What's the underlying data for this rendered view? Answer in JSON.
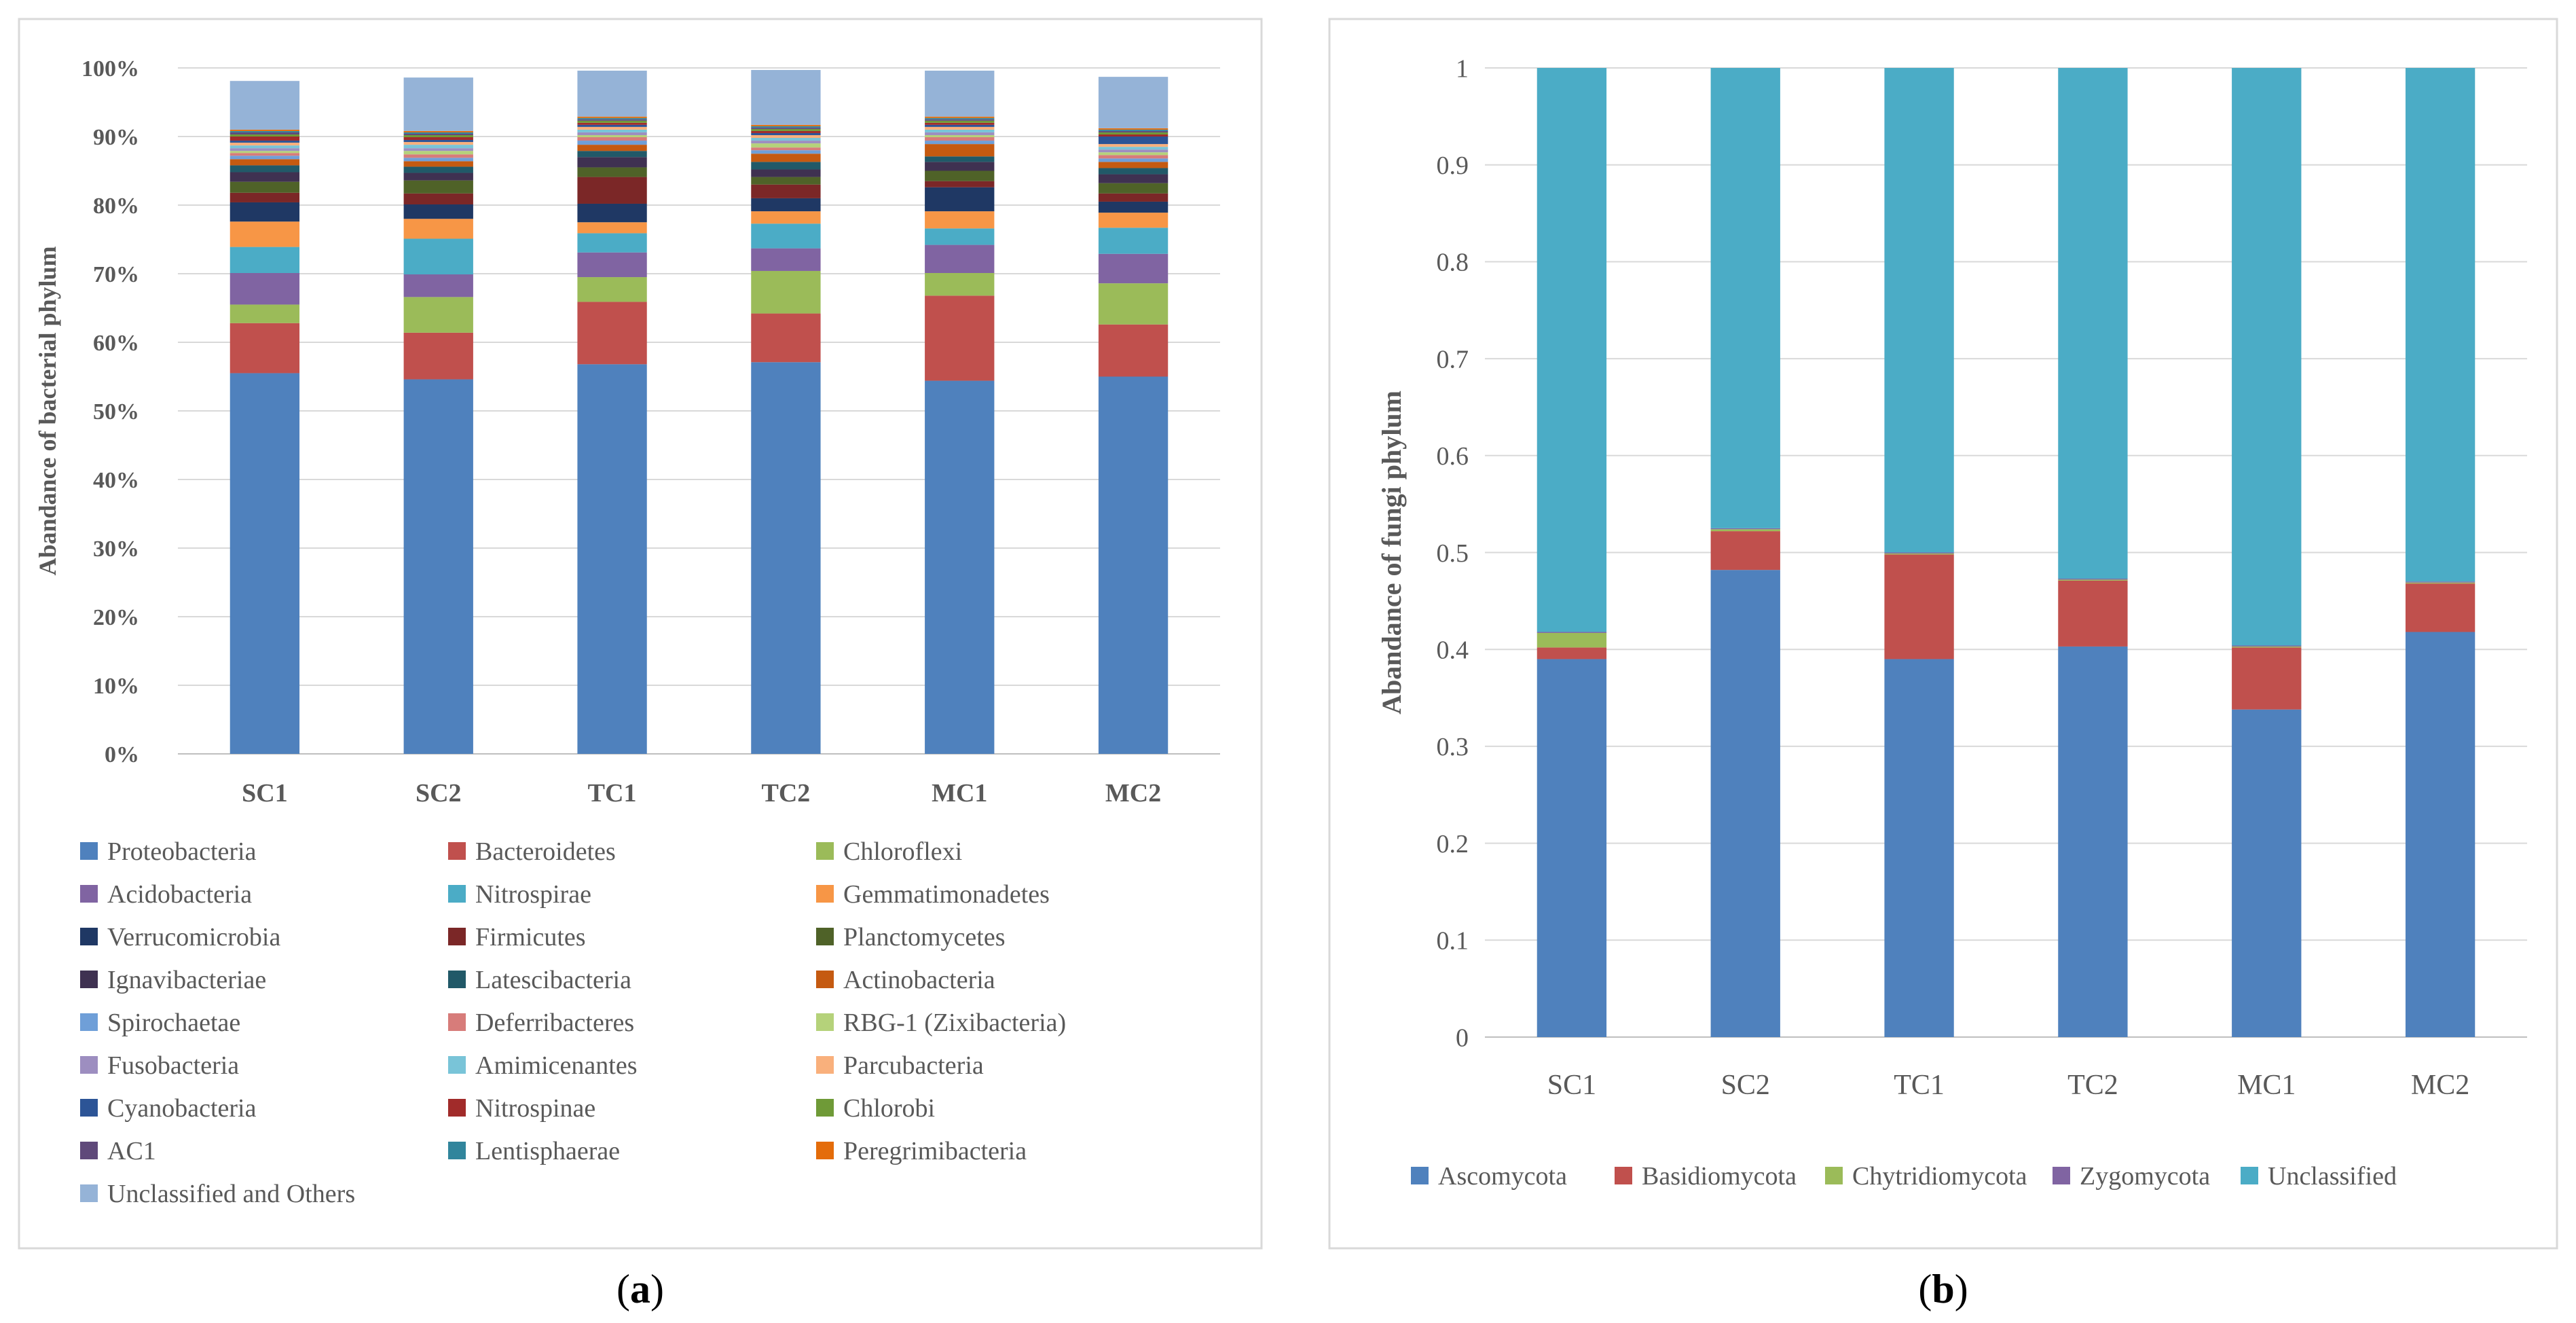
{
  "panels": {
    "a": {
      "label_open": "(",
      "label_letter": "a",
      "label_close": ")"
    },
    "b": {
      "label_open": "(",
      "label_letter": "b",
      "label_close": ")"
    }
  },
  "chart_data": [
    {
      "type": "bar",
      "stacked": true,
      "percent": true,
      "categories": [
        "SC1",
        "SC2",
        "TC1",
        "TC2",
        "MC1",
        "MC2"
      ],
      "ylabel": "Abandance of bacterial phylum",
      "ylim": [
        0,
        100
      ],
      "yticks": [
        "0%",
        "10%",
        "20%",
        "30%",
        "40%",
        "50%",
        "60%",
        "70%",
        "80%",
        "90%",
        "100%"
      ],
      "legend_position": "bottom",
      "series": [
        {
          "name": "Proteobacteria",
          "color": "#4f81bd",
          "values": [
            55.5,
            54.6,
            56.8,
            57.1,
            54.4,
            55.0
          ]
        },
        {
          "name": "Bacteroidetes",
          "color": "#c0504d",
          "values": [
            7.3,
            6.8,
            9.1,
            7.1,
            12.4,
            7.6
          ]
        },
        {
          "name": "Chloroflexi",
          "color": "#9bbb59",
          "values": [
            2.7,
            5.2,
            3.6,
            6.2,
            3.3,
            6.0
          ]
        },
        {
          "name": "Acidobacteria",
          "color": "#8064a2",
          "values": [
            4.6,
            3.3,
            3.6,
            3.3,
            4.1,
            4.3
          ]
        },
        {
          "name": "Nitrospirae",
          "color": "#4bacc6",
          "values": [
            3.8,
            5.2,
            2.8,
            3.6,
            2.4,
            3.8
          ]
        },
        {
          "name": "Gemmatimonadetes",
          "color": "#f79646",
          "values": [
            3.7,
            2.9,
            1.6,
            1.8,
            2.5,
            2.2
          ]
        },
        {
          "name": "Verrucomicrobia",
          "color": "#1f3864",
          "values": [
            2.8,
            2.1,
            2.7,
            1.9,
            3.5,
            1.6
          ]
        },
        {
          "name": "Firmicutes",
          "color": "#7b2727",
          "values": [
            1.4,
            1.6,
            3.9,
            2.0,
            0.9,
            1.2
          ]
        },
        {
          "name": "Planctomycetes",
          "color": "#4f6228",
          "values": [
            1.6,
            1.9,
            1.4,
            1.1,
            1.5,
            1.5
          ]
        },
        {
          "name": "Ignavibacteriae",
          "color": "#3f3151",
          "values": [
            1.4,
            1.1,
            1.5,
            1.1,
            1.3,
            1.3
          ]
        },
        {
          "name": "Latescibacteria",
          "color": "#215968",
          "values": [
            1.0,
            0.9,
            0.9,
            1.1,
            0.8,
            0.9
          ]
        },
        {
          "name": "Actinobacteria",
          "color": "#c55a11",
          "values": [
            0.9,
            0.8,
            0.9,
            1.2,
            1.8,
            0.9
          ]
        },
        {
          "name": "Spirochaetae",
          "color": "#6f9fd8",
          "values": [
            0.5,
            0.5,
            0.6,
            0.5,
            0.5,
            0.5
          ]
        },
        {
          "name": "Deferribacteres",
          "color": "#d77c7a",
          "values": [
            0.4,
            0.5,
            0.5,
            0.4,
            0.5,
            0.5
          ]
        },
        {
          "name": "RBG-1 (Zixibacteria)",
          "color": "#b5d27a",
          "values": [
            0.3,
            0.5,
            0.3,
            0.6,
            0.3,
            0.4
          ]
        },
        {
          "name": "Fusobacteria",
          "color": "#9d8ec0",
          "values": [
            0.4,
            0.4,
            0.4,
            0.4,
            0.4,
            0.4
          ]
        },
        {
          "name": "Amimicenantes",
          "color": "#79c4d8",
          "values": [
            0.4,
            0.5,
            0.4,
            0.4,
            0.4,
            0.4
          ]
        },
        {
          "name": "Parcubacteria",
          "color": "#f9b07c",
          "values": [
            0.4,
            0.4,
            0.4,
            0.4,
            0.4,
            0.4
          ]
        },
        {
          "name": "Cyanobacteria",
          "color": "#2c5496",
          "values": [
            0.3,
            0.3,
            0.3,
            0.3,
            0.3,
            1.1
          ]
        },
        {
          "name": "Nitrospinae",
          "color": "#a12b2a",
          "values": [
            0.6,
            0.4,
            0.3,
            0.3,
            0.3,
            0.3
          ]
        },
        {
          "name": "Chlorobi",
          "color": "#6f9a37",
          "values": [
            0.3,
            0.3,
            0.3,
            0.3,
            0.3,
            0.3
          ]
        },
        {
          "name": "AC1",
          "color": "#5f497a",
          "values": [
            0.3,
            0.2,
            0.2,
            0.2,
            0.2,
            0.2
          ]
        },
        {
          "name": "Lentisphaerae",
          "color": "#31859c",
          "values": [
            0.2,
            0.2,
            0.2,
            0.2,
            0.2,
            0.2
          ]
        },
        {
          "name": "Peregrimibacteria",
          "color": "#e46c0a",
          "values": [
            0.2,
            0.2,
            0.2,
            0.2,
            0.2,
            0.2
          ]
        },
        {
          "name": "Unclassified and Others",
          "color": "#95b3d7",
          "values": [
            7.1,
            7.8,
            6.7,
            8.0,
            6.7,
            7.5
          ]
        }
      ]
    },
    {
      "type": "bar",
      "stacked": true,
      "categories": [
        "SC1",
        "SC2",
        "TC1",
        "TC2",
        "MC1",
        "MC2"
      ],
      "ylabel": "Abandance of fungi phylum",
      "ylim": [
        0,
        1
      ],
      "yticks": [
        "0",
        "0.1",
        "0.2",
        "0.3",
        "0.4",
        "0.5",
        "0.6",
        "0.7",
        "0.8",
        "0.9",
        "1"
      ],
      "legend_position": "bottom",
      "series": [
        {
          "name": "Ascomycota",
          "color": "#4f81bd",
          "values": [
            0.39,
            0.482,
            0.39,
            0.403,
            0.338,
            0.418
          ]
        },
        {
          "name": "Basidiomycota",
          "color": "#c0504d",
          "values": [
            0.012,
            0.04,
            0.108,
            0.068,
            0.064,
            0.05
          ]
        },
        {
          "name": "Chytridiomycota",
          "color": "#9bbb59",
          "values": [
            0.015,
            0.002,
            0.001,
            0.001,
            0.001,
            0.001
          ]
        },
        {
          "name": "Zygomycota",
          "color": "#8064a2",
          "values": [
            0.001,
            0.001,
            0.001,
            0.001,
            0.001,
            0.001
          ]
        },
        {
          "name": "Unclassified",
          "color": "#4bacc6",
          "values": [
            0.582,
            0.475,
            0.5,
            0.527,
            0.596,
            0.53
          ]
        }
      ]
    }
  ]
}
